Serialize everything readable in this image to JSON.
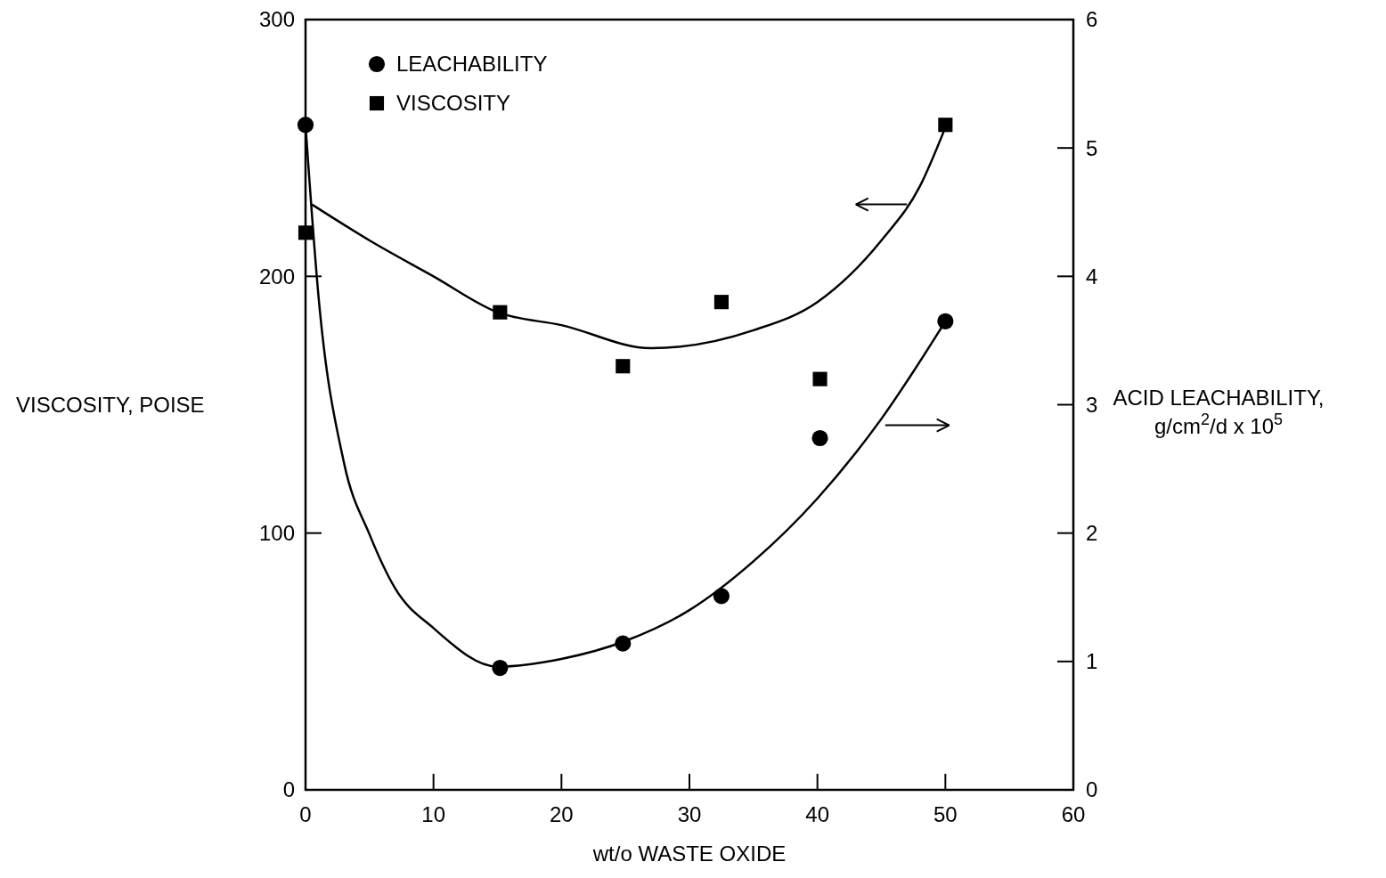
{
  "chart_data": {
    "type": "scatter",
    "xlabel": "wt/o WASTE OXIDE",
    "ylabel": "VISCOSITY, POISE",
    "y2label": "ACID LEACHABILITY, g/cm$^{2}$/d x 10$^{5}$",
    "xlim": [
      0,
      60
    ],
    "xticks": [
      0,
      10,
      20,
      30,
      40,
      50,
      60
    ],
    "ylim": [
      0,
      300
    ],
    "yticks": [
      0,
      100,
      200,
      300
    ],
    "y2lim": [
      0,
      6
    ],
    "y2ticks": [
      0,
      1,
      2,
      3,
      4,
      5,
      6
    ],
    "grid": false,
    "legend": "top left",
    "series": [
      {
        "name": "LEACHABILITY",
        "marker": "circle",
        "color": "#000000",
        "axis": "y2",
        "x": [
          0,
          15.2,
          24.8,
          32.5,
          40.2,
          50
        ],
        "values": [
          5.18,
          0.95,
          1.14,
          1.51,
          2.74,
          3.65
        ]
      },
      {
        "name": "VISCOSITY",
        "marker": "square",
        "color": "#000000",
        "x": [
          0,
          15.2,
          24.8,
          32.5,
          40.2,
          50
        ],
        "values": [
          217,
          186,
          165,
          190,
          160,
          259
        ]
      },
      {
        "type": "line",
        "marker": "none",
        "color": "#000000",
        "axis": "y2",
        "x": [
          0,
          1,
          3,
          5,
          7,
          10,
          15,
          20,
          25,
          30,
          35,
          40,
          45,
          50
        ],
        "values": [
          5.18,
          3.86,
          2.55,
          1.99,
          1.57,
          1.26,
          0.96,
          1.02,
          1.16,
          1.4,
          1.78,
          2.27,
          2.89,
          3.65
        ]
      },
      {
        "type": "line",
        "marker": "none",
        "color": "#000000",
        "x": [
          0.5,
          5,
          10,
          15,
          20,
          27,
          35,
          40,
          45,
          48,
          50
        ],
        "values": [
          228,
          214,
          200,
          186,
          181,
          172,
          179,
          190,
          214,
          235,
          258
        ]
      }
    ]
  }
}
